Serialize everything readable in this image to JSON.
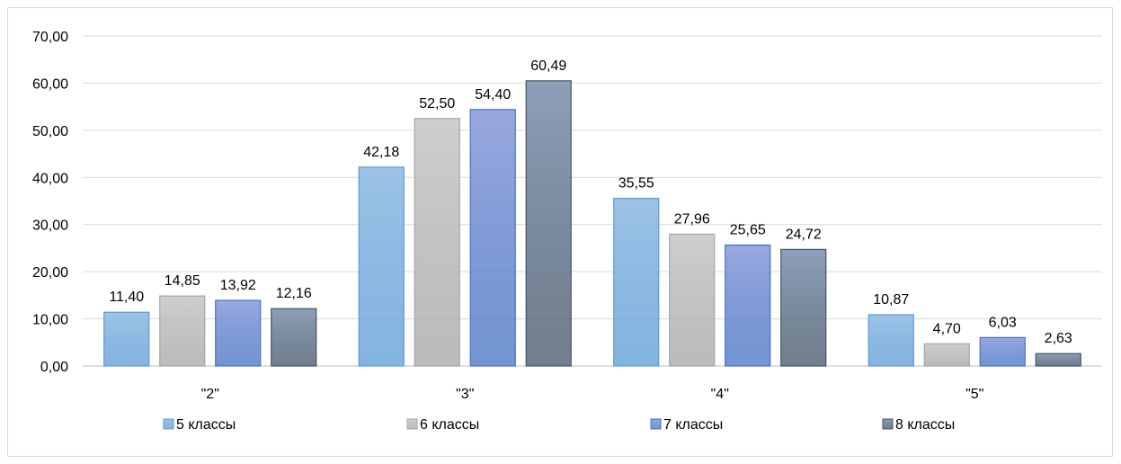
{
  "chart_data": {
    "type": "bar",
    "categories": [
      "\"2\"",
      "\"3\"",
      "\"4\"",
      "\"5\""
    ],
    "series": [
      {
        "name": "5 классы",
        "values": [
          11.4,
          42.18,
          35.55,
          10.87
        ],
        "labels": [
          "11,40",
          "42,18",
          "35,55",
          "10,87"
        ],
        "color": "#9dc3e6",
        "border": "#5b9bd5"
      },
      {
        "name": "6 классы",
        "values": [
          14.85,
          52.5,
          27.96,
          4.7
        ],
        "labels": [
          "14,85",
          "52,50",
          "27,96",
          "4,70"
        ],
        "color": "#cfcfcf",
        "border": "#a5a5a5"
      },
      {
        "name": "7 классы",
        "values": [
          13.92,
          54.4,
          25.65,
          6.03
        ],
        "labels": [
          "13,92",
          "54,40",
          "25,65",
          "6,03"
        ],
        "color": "#9aa8de",
        "border": "#4472c4"
      },
      {
        "name": "8 классы",
        "values": [
          12.16,
          60.49,
          24.72,
          2.63
        ],
        "labels": [
          "12,16",
          "60,49",
          "24,72",
          "2,63"
        ],
        "color": "#8ea0b8",
        "border": "#44546a"
      }
    ],
    "ylim": [
      0,
      70
    ],
    "yticks": [
      "0,00",
      "10,00",
      "20,00",
      "30,00",
      "40,00",
      "50,00",
      "60,00",
      "70,00"
    ],
    "grid": true,
    "legend": "bottom"
  }
}
